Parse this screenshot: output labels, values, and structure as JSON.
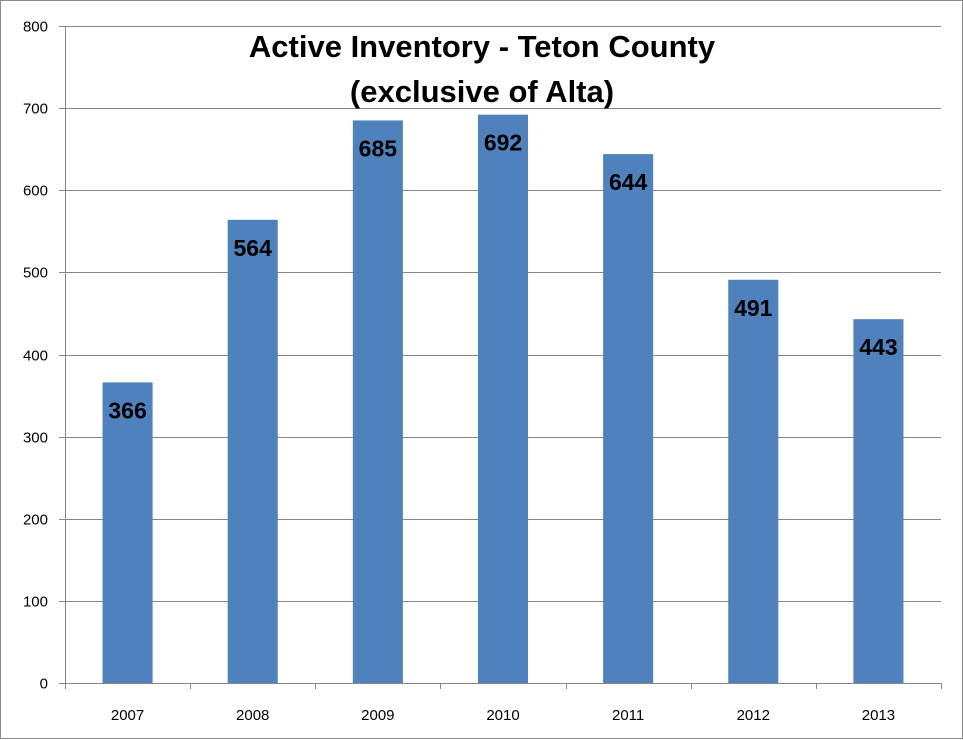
{
  "chart_data": {
    "type": "bar",
    "title": "Active Inventory - Teton County",
    "subtitle": "(exclusive of Alta)",
    "categories": [
      "2007",
      "2008",
      "2009",
      "2010",
      "2011",
      "2012",
      "2013"
    ],
    "values": [
      366,
      564,
      685,
      692,
      644,
      491,
      443
    ],
    "data_labels": [
      "366",
      "564",
      "685",
      "692",
      "644",
      "491",
      "443"
    ],
    "ylim": [
      0,
      800
    ],
    "yticks": [
      0,
      100,
      200,
      300,
      400,
      500,
      600,
      700,
      800
    ],
    "ytick_labels": [
      "0",
      "100",
      "200",
      "300",
      "400",
      "500",
      "600",
      "700",
      "800"
    ],
    "grid": true,
    "legend": "none",
    "bar_color": "#4f81bd",
    "grid_color": "#868686"
  }
}
